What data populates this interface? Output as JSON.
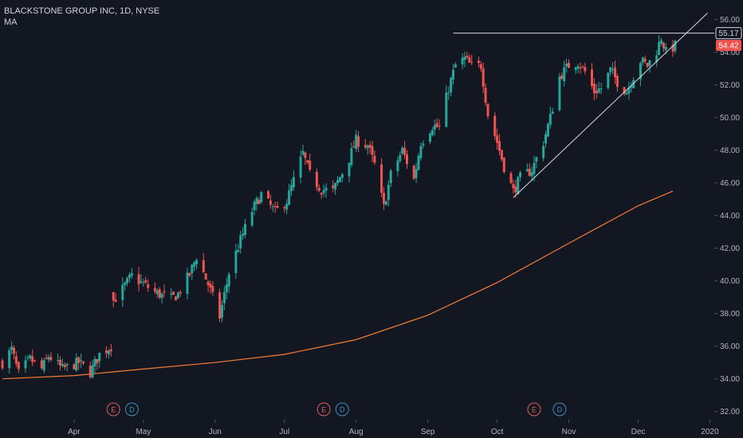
{
  "legend": {
    "title": "BLACKSTONE GROUP INC, 1D, NYSE",
    "indicator": "MA"
  },
  "colors": {
    "background": "#131722",
    "up": "#26a69a",
    "down": "#ef5350",
    "ma": "#f57c36",
    "drawing": "#d9d9d9",
    "grid": "#1e222d",
    "axis_text": "#b2b5be",
    "earnings": "#e05b5b",
    "dividend": "#3b8fbf"
  },
  "chart_data": {
    "type": "candlestick",
    "title": "BLACKSTONE GROUP INC, 1D, NYSE",
    "x_tick_labels": [
      "Apr",
      "May",
      "Jun",
      "Jul",
      "Aug",
      "Sep",
      "Oct",
      "Nov",
      "Dec",
      "2020"
    ],
    "y_tick_labels": [
      "32.00",
      "34.00",
      "36.00",
      "38.00",
      "40.00",
      "42.00",
      "44.00",
      "46.00",
      "48.00",
      "50.00",
      "52.00",
      "54.00",
      "56.00"
    ],
    "ylim": [
      31.5,
      57.2
    ],
    "grid": false,
    "price_labels": [
      {
        "text": "55.17",
        "value": 55.17,
        "style": "line"
      },
      {
        "text": "54.42",
        "value": 54.42,
        "style": "last"
      }
    ],
    "event_markers": [
      {
        "label": "E",
        "kind": "earnings",
        "date": "2019-04-18"
      },
      {
        "label": "D",
        "kind": "dividend",
        "date": "2019-04-26"
      },
      {
        "label": "E",
        "kind": "earnings",
        "date": "2019-07-18"
      },
      {
        "label": "D",
        "kind": "dividend",
        "date": "2019-07-26"
      },
      {
        "label": "E",
        "kind": "earnings",
        "date": "2019-10-17"
      },
      {
        "label": "D",
        "kind": "dividend",
        "date": "2019-10-28"
      }
    ],
    "drawings": [
      {
        "kind": "horizontal",
        "from": "2019-09-12",
        "value": 55.17
      },
      {
        "kind": "trend",
        "from_date": "2019-10-08",
        "from_value": 45.1,
        "to_date": "2019-12-31",
        "to_value": 56.4
      }
    ],
    "ma_series": [
      [
        "2019-03-01",
        34.0
      ],
      [
        "2019-04-01",
        34.2
      ],
      [
        "2019-05-01",
        34.6
      ],
      [
        "2019-06-01",
        35.0
      ],
      [
        "2019-07-01",
        35.5
      ],
      [
        "2019-08-01",
        36.4
      ],
      [
        "2019-09-01",
        37.9
      ],
      [
        "2019-10-01",
        39.9
      ],
      [
        "2019-11-01",
        42.3
      ],
      [
        "2019-12-01",
        44.6
      ],
      [
        "2019-12-16",
        45.5
      ]
    ],
    "anchors": [
      [
        "2019-03-01",
        35.0
      ],
      [
        "2019-03-05",
        35.8
      ],
      [
        "2019-03-08",
        34.3
      ],
      [
        "2019-03-13",
        35.2
      ],
      [
        "2019-03-18",
        34.6
      ],
      [
        "2019-03-21",
        35.4
      ],
      [
        "2019-03-27",
        34.6
      ],
      [
        "2019-04-03",
        35.0
      ],
      [
        "2019-04-08",
        34.4
      ],
      [
        "2019-04-12",
        35.5
      ],
      [
        "2019-04-17",
        36.0
      ],
      [
        "2019-04-18",
        38.8
      ],
      [
        "2019-04-22",
        39.5
      ],
      [
        "2019-04-26",
        40.3
      ],
      [
        "2019-05-01",
        39.8
      ],
      [
        "2019-05-06",
        39.3
      ],
      [
        "2019-05-13",
        38.9
      ],
      [
        "2019-05-16",
        39.2
      ],
      [
        "2019-05-21",
        40.4
      ],
      [
        "2019-05-24",
        41.5
      ],
      [
        "2019-05-29",
        39.8
      ],
      [
        "2019-06-03",
        37.8
      ],
      [
        "2019-06-07",
        40.5
      ],
      [
        "2019-06-12",
        42.5
      ],
      [
        "2019-06-17",
        44.3
      ],
      [
        "2019-06-21",
        45.3
      ],
      [
        "2019-06-27",
        44.2
      ],
      [
        "2019-07-02",
        44.9
      ],
      [
        "2019-07-09",
        47.8
      ],
      [
        "2019-07-12",
        46.5
      ],
      [
        "2019-07-17",
        45.6
      ],
      [
        "2019-07-22",
        45.5
      ],
      [
        "2019-07-29",
        47.5
      ],
      [
        "2019-08-01",
        48.6
      ],
      [
        "2019-08-06",
        48.3
      ],
      [
        "2019-08-09",
        47.1
      ],
      [
        "2019-08-13",
        44.5
      ],
      [
        "2019-08-16",
        46.5
      ],
      [
        "2019-08-21",
        48.0
      ],
      [
        "2019-08-26",
        46.2
      ],
      [
        "2019-08-29",
        48.5
      ],
      [
        "2019-09-03",
        49.5
      ],
      [
        "2019-09-06",
        49.4
      ],
      [
        "2019-09-10",
        51.8
      ],
      [
        "2019-09-13",
        53.2
      ],
      [
        "2019-09-17",
        53.6
      ],
      [
        "2019-09-20",
        53.1
      ],
      [
        "2019-09-24",
        53.2
      ],
      [
        "2019-09-27",
        50.2
      ],
      [
        "2019-10-01",
        48.5
      ],
      [
        "2019-10-04",
        47.0
      ],
      [
        "2019-10-08",
        45.5
      ],
      [
        "2019-10-11",
        46.3
      ],
      [
        "2019-10-16",
        46.8
      ],
      [
        "2019-10-21",
        48.5
      ],
      [
        "2019-10-24",
        50.0
      ],
      [
        "2019-10-28",
        52.5
      ],
      [
        "2019-11-01",
        53.2
      ],
      [
        "2019-11-05",
        53.4
      ],
      [
        "2019-11-08",
        52.8
      ],
      [
        "2019-11-12",
        51.6
      ],
      [
        "2019-11-15",
        51.8
      ],
      [
        "2019-11-19",
        52.9
      ],
      [
        "2019-11-22",
        52.2
      ],
      [
        "2019-11-26",
        51.6
      ],
      [
        "2019-12-02",
        53.5
      ],
      [
        "2019-12-05",
        53.2
      ],
      [
        "2019-12-09",
        54.1
      ],
      [
        "2019-12-11",
        54.9
      ],
      [
        "2019-12-13",
        54.0
      ],
      [
        "2019-12-17",
        54.4
      ]
    ]
  }
}
